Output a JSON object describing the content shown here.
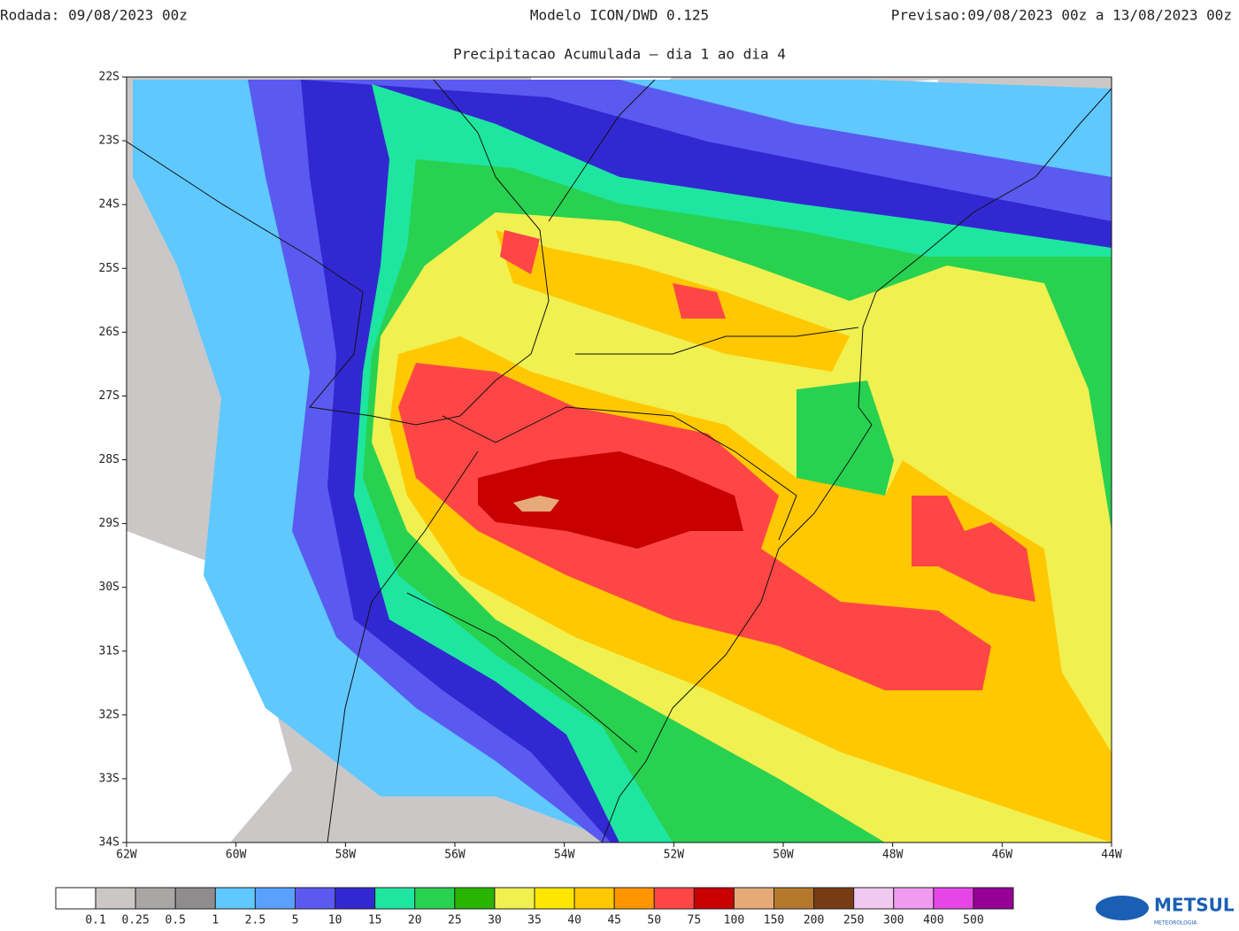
{
  "header": {
    "run": "Rodada: 09/08/2023 00z",
    "model": "Modelo ICON/DWD 0.125",
    "forecast": "Previsao:09/08/2023 00z a 13/08/2023 00z",
    "subtitle": "Precipitacao Acumulada – dia 1 ao dia 4"
  },
  "map": {
    "lonlim": [
      -62,
      -44
    ],
    "latlim": [
      -22,
      -34
    ],
    "lonticks": [
      {
        "value": -62,
        "label": "62W"
      },
      {
        "value": -60,
        "label": "60W"
      },
      {
        "value": -58,
        "label": "58W"
      },
      {
        "value": -56,
        "label": "56W"
      },
      {
        "value": -54,
        "label": "54W"
      },
      {
        "value": -52,
        "label": "52W"
      },
      {
        "value": -50,
        "label": "50W"
      },
      {
        "value": -48,
        "label": "48W"
      },
      {
        "value": -46,
        "label": "46W"
      },
      {
        "value": -44,
        "label": "44W"
      }
    ],
    "latticks": [
      {
        "value": -22,
        "label": "22S"
      },
      {
        "value": -23,
        "label": "23S"
      },
      {
        "value": -24,
        "label": "24S"
      },
      {
        "value": -25,
        "label": "25S"
      },
      {
        "value": -26,
        "label": "26S"
      },
      {
        "value": -27,
        "label": "27S"
      },
      {
        "value": -28,
        "label": "28S"
      },
      {
        "value": -29,
        "label": "29S"
      },
      {
        "value": -30,
        "label": "30S"
      },
      {
        "value": -31,
        "label": "31S"
      },
      {
        "value": -32,
        "label": "32S"
      },
      {
        "value": -33,
        "label": "33S"
      },
      {
        "value": -34,
        "label": "34S"
      }
    ]
  },
  "colorbar": {
    "colors": [
      "#ffffff",
      "#cbc7c7",
      "#a9a6a6",
      "#8e8c8c",
      "#5fc8ff",
      "#5aa0ff",
      "#5a5af0",
      "#3228d2",
      "#1ee6a0",
      "#28d250",
      "#28b400",
      "#f0f050",
      "#ffe600",
      "#ffc800",
      "#ff9600",
      "#ff4646",
      "#c80000",
      "#e6aa78",
      "#b4782d",
      "#783c14",
      "#f0c8f0",
      "#f09bf0",
      "#e646e6",
      "#960096"
    ],
    "levels": [
      0.1,
      0.25,
      0.5,
      1,
      2.5,
      5,
      10,
      15,
      20,
      25,
      30,
      35,
      40,
      45,
      50,
      75,
      100,
      150,
      200,
      250,
      300,
      400,
      500
    ]
  },
  "logo": {
    "name": "METSUL",
    "tagline": "METEOROLOGIA"
  }
}
